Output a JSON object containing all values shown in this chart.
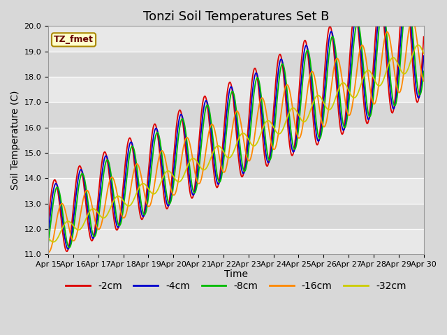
{
  "title": "Tonzi Soil Temperatures Set B",
  "ylabel": "Soil Temperature (C)",
  "xlabel": "Time",
  "ylim": [
    11.0,
    20.0
  ],
  "yticks": [
    11.0,
    12.0,
    13.0,
    14.0,
    15.0,
    16.0,
    17.0,
    18.0,
    19.0,
    20.0
  ],
  "fig_bg_color": "#d8d8d8",
  "plot_bg_color": "#d8d8d8",
  "band_color": "#e8e8e8",
  "legend_label": "TZ_fmet",
  "series_colors": {
    "-2cm": "#dd0000",
    "-4cm": "#0000cc",
    "-8cm": "#00bb00",
    "-16cm": "#ff8800",
    "-32cm": "#cccc00"
  },
  "series_names": [
    "-2cm",
    "-4cm",
    "-8cm",
    "-16cm",
    "-32cm"
  ],
  "phase_shifts": [
    0.0,
    0.05,
    0.1,
    0.28,
    0.5
  ],
  "amp_scales": [
    1.0,
    0.92,
    0.85,
    0.55,
    0.18
  ],
  "trend_offsets": [
    0.0,
    -0.05,
    -0.12,
    -0.4,
    -0.65
  ],
  "n_points": 720,
  "title_fontsize": 13,
  "axis_fontsize": 10,
  "tick_fontsize": 8,
  "legend_fontsize": 10
}
